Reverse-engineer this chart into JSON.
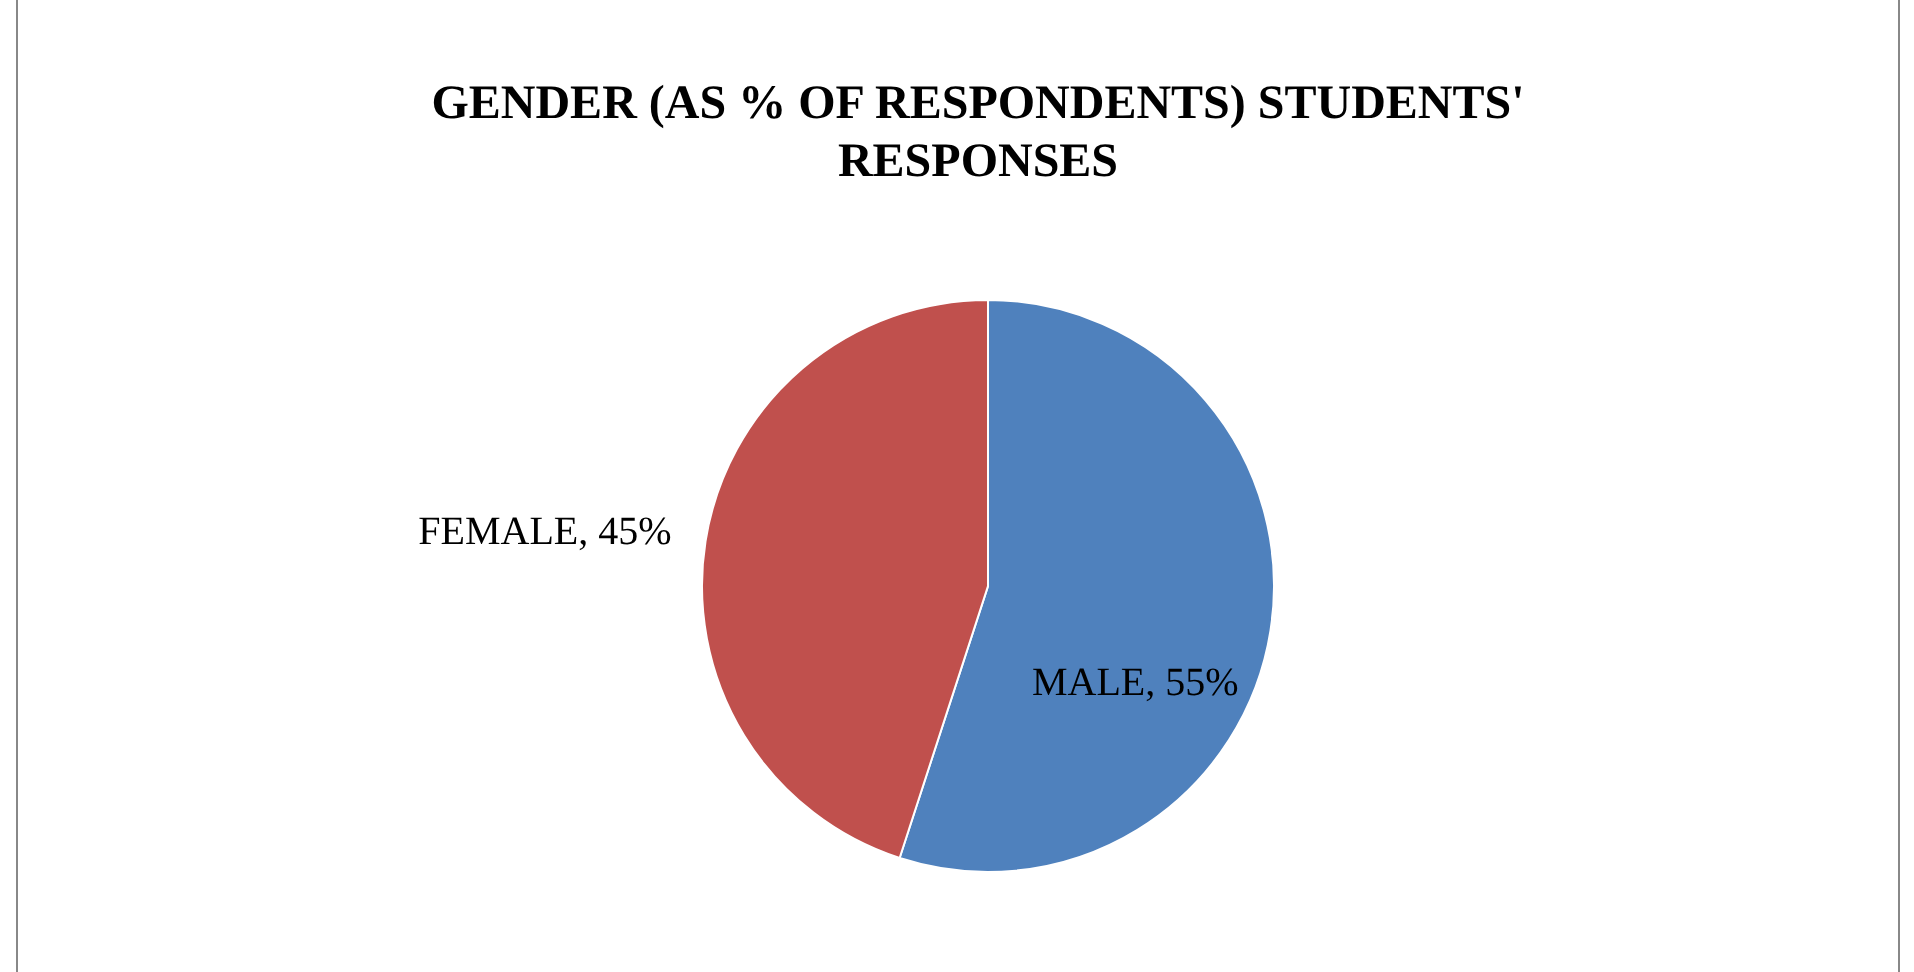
{
  "chart_data": {
    "type": "pie",
    "title": "GENDER (AS % OF RESPONDENTS) STUDENTS' RESPONSES",
    "categories": [
      "MALE",
      "FEMALE"
    ],
    "values": [
      55,
      45
    ],
    "value_labels": [
      ", 55%",
      ", 45%"
    ],
    "colors": [
      "#4f81bd",
      "#c0504d"
    ],
    "legend": false
  }
}
